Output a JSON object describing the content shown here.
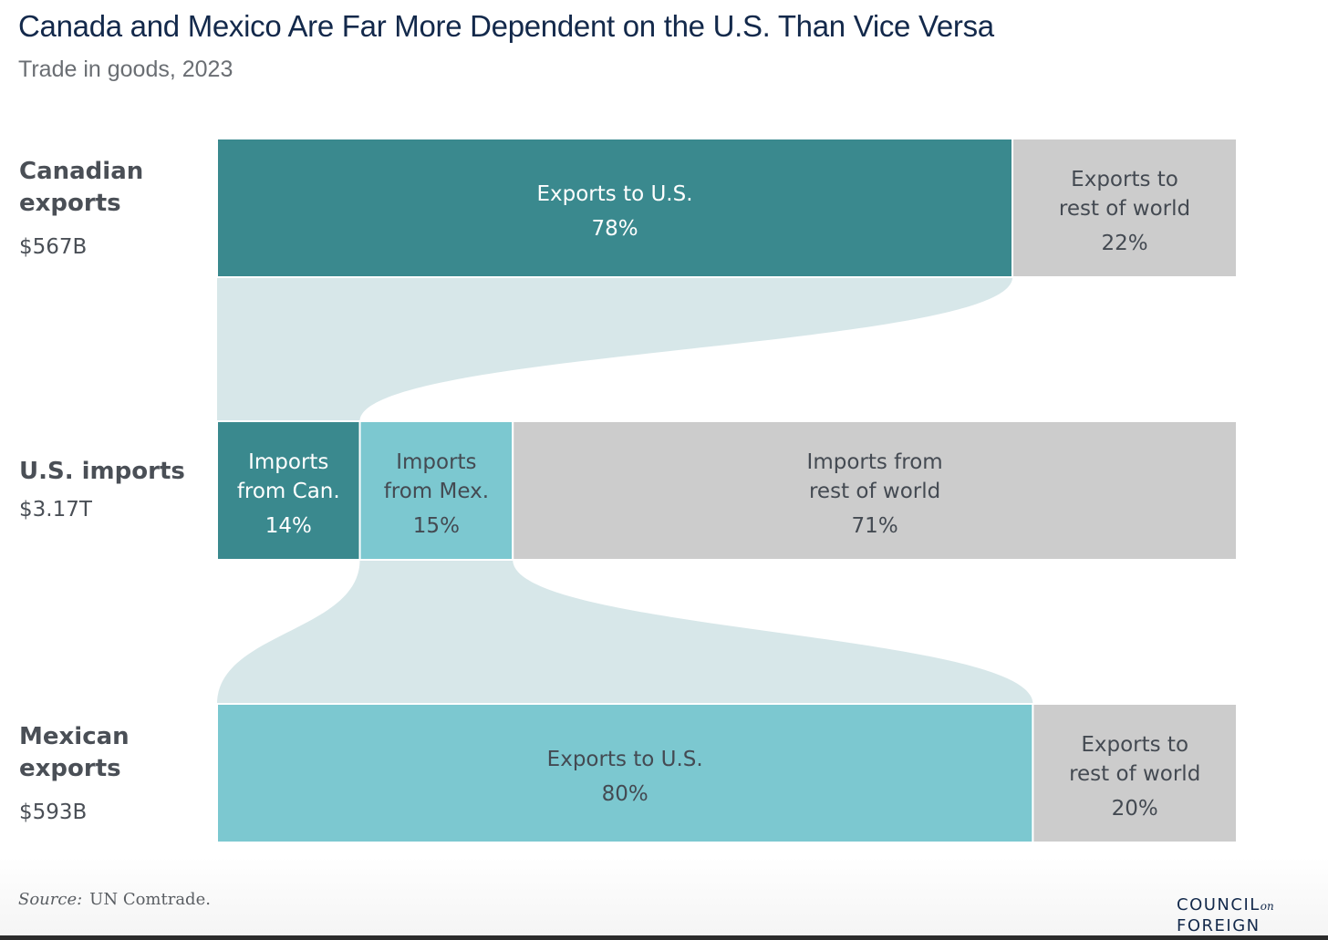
{
  "header": {
    "title": "Canada and Mexico Are Far More Dependent on the U.S. Than Vice Versa",
    "subtitle": "Trade in goods, 2023"
  },
  "rows": [
    {
      "label_line1": "Canadian",
      "label_line2": "exports",
      "total": "$567B"
    },
    {
      "label_line1": "U.S. imports",
      "label_line2": "",
      "total": "$3.17T"
    },
    {
      "label_line1": "Mexican",
      "label_line2": "exports",
      "total": "$593B"
    }
  ],
  "chart_data": {
    "type": "bar",
    "stacked": true,
    "unit": "%",
    "colors": {
      "canada": "#3a898e",
      "mexico": "#7cc8d0",
      "rest": "#cccccc",
      "flow": "#d7e7e9",
      "text_light": "#ffffff",
      "text_dark": "#444a52"
    },
    "bars": [
      {
        "name": "Canadian exports",
        "total": "$567B",
        "segments": [
          {
            "label": [
              "Exports to U.S."
            ],
            "value": 78,
            "value_label": "78%",
            "color": "canada"
          },
          {
            "label": [
              "Exports to",
              "rest of world"
            ],
            "value": 22,
            "value_label": "22%",
            "color": "rest"
          }
        ]
      },
      {
        "name": "U.S. imports",
        "total": "$3.17T",
        "segments": [
          {
            "label": [
              "Imports",
              "from Can."
            ],
            "value": 14,
            "value_label": "14%",
            "color": "canada"
          },
          {
            "label": [
              "Imports",
              "from Mex."
            ],
            "value": 15,
            "value_label": "15%",
            "color": "mexico"
          },
          {
            "label": [
              "Imports from",
              "rest of world"
            ],
            "value": 71,
            "value_label": "71%",
            "color": "rest"
          }
        ]
      },
      {
        "name": "Mexican exports",
        "total": "$593B",
        "segments": [
          {
            "label": [
              "Exports to U.S."
            ],
            "value": 80,
            "value_label": "80%",
            "color": "mexico"
          },
          {
            "label": [
              "Exports to",
              "rest of world"
            ],
            "value": 20,
            "value_label": "20%",
            "color": "rest"
          }
        ]
      }
    ],
    "flows": [
      {
        "from_bar": 0,
        "from_segment": 0,
        "to_bar": 1,
        "to_segment": 0
      },
      {
        "from_bar": 1,
        "from_segment": 1,
        "to_bar": 2,
        "to_segment": 0
      }
    ]
  },
  "footer": {
    "source_label": "Source:",
    "source_text": "UN Comtrade.",
    "logo_line1": "COUNCIL",
    "logo_on": "on",
    "logo_line2": "FOREIGN"
  }
}
